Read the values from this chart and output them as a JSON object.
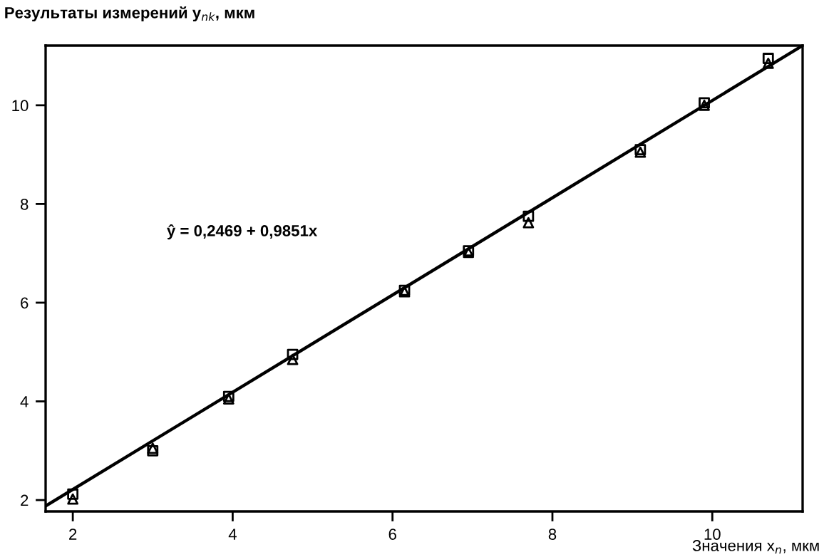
{
  "chart_data": {
    "type": "scatter",
    "ylabel": "Результаты измерений y$_{nk}$, мкм",
    "xlabel": "Значения x$_{n}$, мкм",
    "annotations": [
      "ŷ = 0,2469 + 0,9851x"
    ],
    "xlim": [
      1.66,
      11.13
    ],
    "ylim": [
      1.77,
      11.21
    ],
    "xticks": [
      2,
      4,
      6,
      8,
      10
    ],
    "yticks": [
      2,
      4,
      6,
      8,
      10
    ],
    "grid": false,
    "legend": false,
    "series": [
      {
        "marker": "square",
        "color": "#000000",
        "x": [
          2.0,
          3.0,
          3.95,
          4.75,
          6.15,
          6.95,
          7.7,
          9.1,
          9.9,
          10.7
        ],
        "values": [
          2.12,
          3.0,
          4.1,
          4.95,
          6.25,
          7.05,
          7.75,
          9.1,
          10.05,
          10.95
        ]
      },
      {
        "marker": "triangle",
        "color": "#000000",
        "x": [
          2.0,
          3.0,
          3.95,
          4.75,
          6.15,
          6.95,
          7.7,
          9.1,
          9.9,
          10.7
        ],
        "values": [
          2.02,
          3.05,
          4.05,
          4.85,
          6.22,
          7.02,
          7.62,
          9.05,
          10.0,
          10.85
        ]
      },
      {
        "type": "line",
        "marker": "none",
        "line_style": "solid",
        "color": "#000000",
        "x": [
          1.66,
          11.12
        ],
        "values": [
          1.88,
          11.2
        ]
      }
    ]
  }
}
